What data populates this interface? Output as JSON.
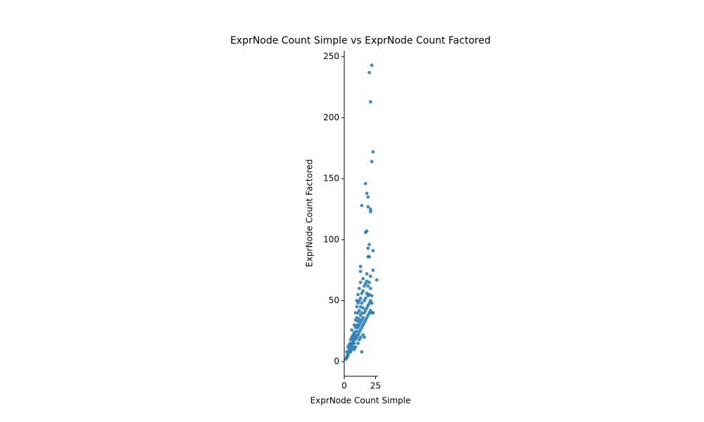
{
  "chart_data": {
    "type": "scatter",
    "title": "ExprNode Count Simple vs ExprNode Count Factored",
    "xlabel": "ExprNode Count Simple",
    "ylabel": "ExprNode Count Factored",
    "color": "#1f77b4",
    "xlim": [
      0,
      27
    ],
    "xticks": [
      0,
      25
    ],
    "ylim": [
      -12,
      255
    ],
    "yticks": [
      0,
      50,
      100,
      150,
      200,
      250
    ],
    "x": [
      22,
      20,
      21,
      23,
      22,
      17,
      18,
      19,
      14,
      19,
      21,
      21,
      18,
      17,
      20,
      19,
      23,
      19,
      20,
      13,
      23,
      13,
      26,
      21,
      18,
      1,
      2,
      2,
      3,
      3,
      4,
      4,
      5,
      5,
      5,
      6,
      6,
      6,
      6,
      7,
      7,
      7,
      7,
      8,
      8,
      8,
      8,
      9,
      9,
      9,
      9,
      9,
      10,
      10,
      10,
      10,
      10,
      10,
      11,
      11,
      11,
      11,
      11,
      11,
      12,
      12,
      12,
      12,
      12,
      12,
      13,
      13,
      13,
      13,
      13,
      13,
      14,
      14,
      14,
      14,
      14,
      14,
      15,
      15,
      15,
      15,
      15,
      15,
      16,
      16,
      16,
      16,
      16,
      17,
      17,
      17,
      17,
      18,
      18,
      18,
      18,
      19,
      19,
      19,
      19,
      20,
      20,
      20,
      20,
      21,
      21,
      21,
      22,
      22,
      22,
      23,
      3,
      4,
      2,
      5,
      8,
      9,
      11,
      12,
      13
    ],
    "y": [
      243,
      237,
      213,
      172,
      164,
      146,
      138,
      135,
      128,
      127,
      125,
      123,
      107,
      106,
      96,
      93,
      91,
      86,
      86,
      78,
      75,
      74,
      67,
      70,
      72,
      2,
      3,
      4,
      5,
      6,
      8,
      10,
      12,
      15,
      18,
      10,
      14,
      20,
      26,
      12,
      16,
      22,
      18,
      15,
      20,
      24,
      30,
      18,
      22,
      28,
      34,
      40,
      20,
      25,
      30,
      36,
      45,
      50,
      22,
      28,
      33,
      40,
      48,
      55,
      24,
      30,
      35,
      42,
      50,
      60,
      26,
      32,
      38,
      45,
      52,
      65,
      8,
      28,
      34,
      40,
      48,
      56,
      22,
      30,
      36,
      44,
      58,
      68,
      20,
      32,
      40,
      50,
      62,
      34,
      42,
      52,
      64,
      36,
      44,
      56,
      66,
      38,
      46,
      54,
      62,
      40,
      48,
      55,
      65,
      42,
      50,
      60,
      40,
      48,
      54,
      40,
      12,
      14,
      8,
      8,
      10,
      12,
      15,
      18,
      20
    ]
  }
}
